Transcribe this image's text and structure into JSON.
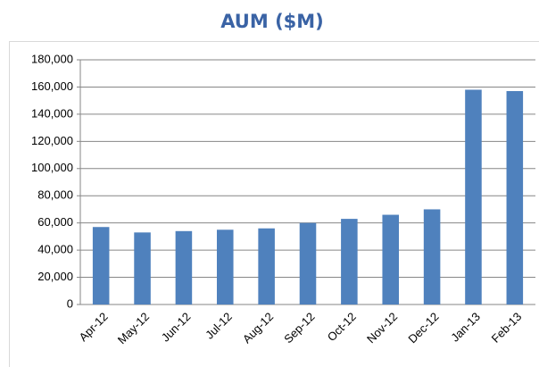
{
  "chart_data": {
    "type": "bar",
    "title": "AUM ($M)",
    "categories": [
      "Apr-12",
      "May-12",
      "Jun-12",
      "Jul-12",
      "Aug-12",
      "Sep-12",
      "Oct-12",
      "Nov-12",
      "Dec-12",
      "Jan-13",
      "Feb-13"
    ],
    "values": [
      57000,
      53000,
      54000,
      55000,
      56000,
      60000,
      63000,
      66000,
      70000,
      158000,
      157000
    ],
    "color": "#4f81bd",
    "ylim": [
      0,
      180000
    ],
    "yticks": [
      0,
      {
        "value": 20000,
        "label": "20,000"
      },
      {
        "value": 40000,
        "label": "40,000"
      },
      {
        "value": 60000,
        "label": "60,000"
      },
      {
        "value": 80000,
        "label": "80,000"
      },
      {
        "value": 100000,
        "label": "100,000"
      },
      {
        "value": 120000,
        "label": "120,000"
      },
      {
        "value": 140000,
        "label": "140,000"
      },
      {
        "value": 160000,
        "label": "160,000"
      },
      {
        "value": 180000,
        "label": "180,000"
      }
    ],
    "grid": true
  }
}
